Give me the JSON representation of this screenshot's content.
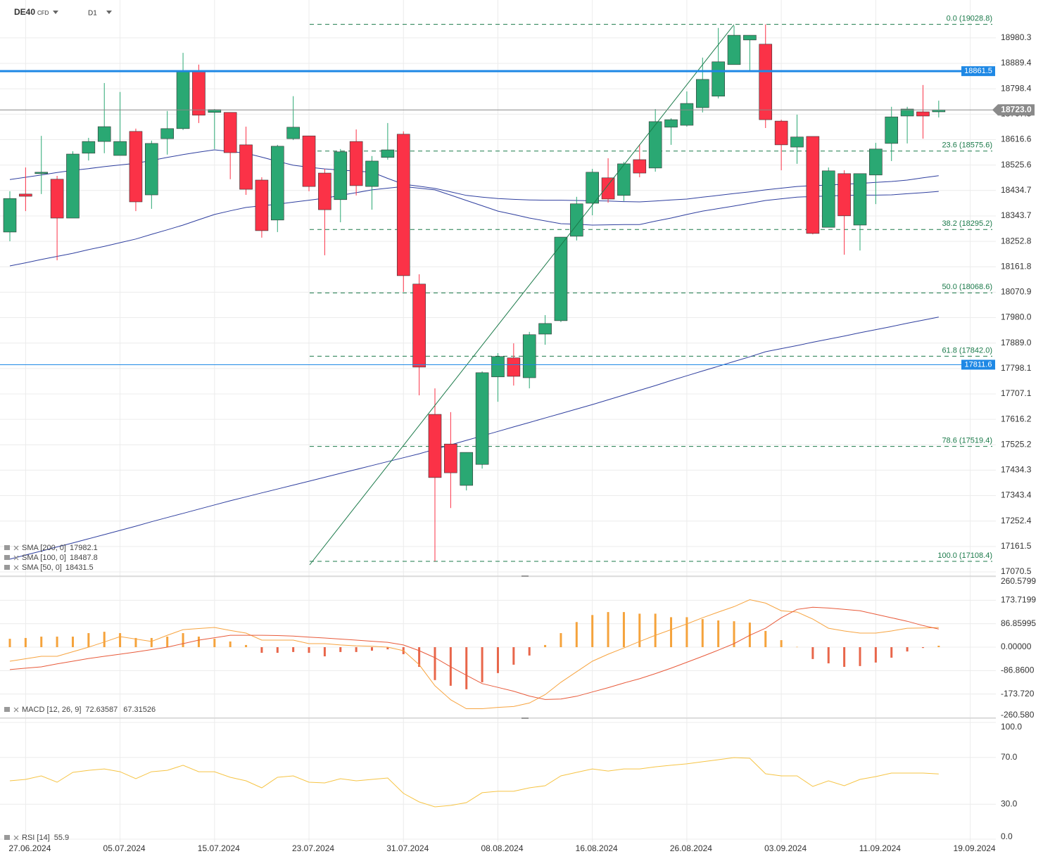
{
  "header": {
    "symbol": "DE40",
    "kind": "CFD",
    "interval": "D1"
  },
  "chart_data": [
    {
      "type": "candlestick",
      "categories": [
        null,
        "27.06.2024",
        null,
        null,
        null,
        null,
        null,
        "05.07.2024",
        null,
        null,
        null,
        null,
        null,
        "15.07.2024",
        null,
        null,
        null,
        null,
        null,
        "23.07.2024",
        null,
        null,
        null,
        null,
        null,
        "31.07.2024",
        null,
        null,
        null,
        null,
        null,
        "08.08.2024",
        null,
        null,
        null,
        null,
        null,
        "16.08.2024",
        null,
        null,
        null,
        null,
        null,
        "26.08.2024",
        null,
        null,
        null,
        null,
        null,
        "03.09.2024",
        null,
        null,
        null,
        null,
        null,
        "11.09.2024",
        null,
        null,
        null,
        null,
        null,
        "19.09.2024"
      ],
      "open": [
        18286,
        18422,
        18495,
        18475,
        18336,
        18568,
        18610,
        18560,
        18646,
        18419,
        18620,
        18656,
        18862,
        18714,
        18714,
        18598,
        18472,
        18329,
        18620,
        18630,
        18497,
        18402,
        18610,
        18449,
        18553,
        18636,
        18100,
        17634,
        17528,
        17380,
        17455,
        17768,
        17836,
        17765,
        17921,
        17969,
        18271,
        18389,
        18480,
        18417,
        18545,
        18515,
        18661,
        18668,
        18731,
        18772,
        18885,
        18973,
        18958,
        18683,
        18590,
        18628,
        18303,
        18495,
        18311,
        18490,
        18603,
        18701,
        18716,
        18716,
        null,
        null
      ],
      "high": [
        18432,
        18517,
        18630,
        18487,
        18575,
        18623,
        18819,
        18787,
        18656,
        18613,
        18719,
        18927,
        18885,
        18726,
        18714,
        18663,
        18482,
        18598,
        18772,
        18630,
        18512,
        18583,
        18653,
        18558,
        18676,
        18646,
        18135,
        17727,
        17642,
        17498,
        17788,
        17853,
        17888,
        17929,
        17989,
        18268,
        18412,
        18512,
        18550,
        18537,
        18600,
        18726,
        18693,
        18789,
        18910,
        19016,
        19023,
        18990,
        19028.8,
        18688,
        18706,
        18628,
        18517,
        18507,
        18495,
        18605,
        18734,
        18734,
        18812,
        18756,
        null,
        null
      ],
      "low": [
        18253,
        18361,
        18422,
        18185,
        18336,
        18542,
        18568,
        18560,
        18361,
        18369,
        18563,
        18651,
        18676,
        18583,
        18475,
        18419,
        18266,
        18286,
        18615,
        18432,
        18203,
        18321,
        18417,
        18366,
        18545,
        18072,
        17702,
        17108.4,
        17299,
        17362,
        17440,
        17679,
        17737,
        17727,
        17883,
        17964,
        18256,
        18346,
        18391,
        18397,
        18482,
        18502,
        18598,
        18663,
        18714,
        18764,
        18885,
        18860,
        18658,
        18507,
        18530,
        18278,
        18303,
        18205,
        18220,
        18386,
        18540,
        18603,
        18620,
        18696,
        null,
        null
      ],
      "close": [
        18406,
        18414,
        18500,
        18336,
        18565,
        18610,
        18663,
        18610,
        18394,
        18603,
        18656,
        18862,
        18704,
        18724,
        18570,
        18439,
        18291,
        18593,
        18661,
        18449,
        18366,
        18573,
        18452,
        18540,
        18580,
        18130,
        17803,
        17408,
        17425,
        17498,
        17783,
        17841,
        17770,
        17919,
        17959,
        18268,
        18387,
        18500,
        18404,
        18530,
        18497,
        18681,
        18688,
        18746,
        18832,
        18895,
        18990,
        18990,
        18688,
        18598,
        18626,
        18281,
        18505,
        18344,
        18495,
        18583,
        18698,
        18726,
        18701,
        18723,
        null,
        null
      ],
      "up_color": "#2aa873",
      "down_color": "#fb3247",
      "series": [
        {
          "name": "SMA [200, 0]",
          "color": "#2f3f9f",
          "values": [
            17116,
            17131,
            17145,
            17160,
            17174,
            17189,
            17204,
            17219,
            17234,
            17250,
            17265,
            17280,
            17295,
            17310,
            17325,
            17339,
            17353,
            17367,
            17381,
            17395,
            17409,
            17423,
            17437,
            17451,
            17465,
            17479,
            17493,
            17509,
            17525,
            17541,
            17557,
            17573,
            17589,
            17605,
            17621,
            17637,
            17653,
            17669,
            17686,
            17703,
            17720,
            17737,
            17755,
            17772,
            17789,
            17806,
            17823,
            17840,
            17858,
            17869,
            17880,
            17892,
            17903,
            17914,
            17926,
            17937,
            17948,
            17960,
            17971,
            17982.1,
            null,
            null
          ]
        },
        {
          "name": "SMA [100, 0]",
          "color": "#2f3f9f",
          "values": [
            18474,
            18482,
            18490,
            18499,
            18507,
            18513,
            18520,
            18526,
            18532,
            18542,
            18553,
            18563,
            18572,
            18580,
            18574,
            18568,
            18554,
            18539,
            18525,
            18518,
            18512,
            18508,
            18504,
            18500,
            18478,
            18457,
            18450,
            18442,
            18430,
            18417,
            18411,
            18406,
            18403,
            18401,
            18400,
            18400,
            18399,
            18398,
            18397,
            18395,
            18394,
            18397,
            18401,
            18404,
            18411,
            18417,
            18424,
            18430,
            18437,
            18443,
            18449,
            18452,
            18454,
            18457,
            18460,
            18464,
            18467,
            18472,
            18480,
            18487.8,
            null,
            null
          ]
        },
        {
          "name": "SMA [50, 0]",
          "color": "#2f3f9f",
          "values": [
            18165,
            18176,
            18188,
            18199,
            18210,
            18223,
            18235,
            18248,
            18261,
            18278,
            18294,
            18311,
            18330,
            18349,
            18362,
            18374,
            18380,
            18386,
            18393,
            18400,
            18407,
            18417,
            18427,
            18437,
            18443,
            18449,
            18443,
            18437,
            18418,
            18399,
            18380,
            18361,
            18349,
            18336,
            18326,
            18316,
            18314,
            18311,
            18312,
            18313,
            18313,
            18325,
            18336,
            18349,
            18361,
            18370,
            18379,
            18389,
            18399,
            18405,
            18411,
            18413,
            18415,
            18417,
            18418,
            18418,
            18419,
            18423,
            18427,
            18431.5,
            null,
            null
          ]
        }
      ],
      "hlines": [
        18861.5,
        17811.6
      ],
      "hline_color": "#1e88e5",
      "last_price": {
        "value": 18723,
        "label": "18723.0"
      },
      "fib_levels": [
        {
          "value": 19028.8,
          "label": "0.0 (19028.8)"
        },
        {
          "value": 18575.6,
          "label": "23.6 (18575.6)"
        },
        {
          "value": 18295.2,
          "label": "38.2 (18295.2)"
        },
        {
          "value": 18068.6,
          "label": "50.0 (18068.6)"
        },
        {
          "value": 17842.0,
          "label": "61.8 (17842.0)"
        },
        {
          "value": 17519.4,
          "label": "78.6 (17519.4)"
        },
        {
          "value": 17108.4,
          "label": "100.0 (17108.4)"
        }
      ],
      "ylim": [
        17058,
        19116
      ],
      "yticks": [
        18980.3,
        18889.4,
        18798.4,
        18707.5,
        18616.6,
        18525.6,
        18434.7,
        18343.7,
        18252.8,
        18161.8,
        18070.9,
        {
          "value": 17980,
          "label": "17980.0"
        },
        {
          "value": 17889,
          "label": "17889.0"
        },
        17798.1,
        17707.1,
        17616.2,
        17525.2,
        17434.3,
        17343.4,
        17252.4,
        17161.5,
        17070.5
      ],
      "grid": true
    },
    {
      "type": "macd",
      "title": "MACD [12, 26, 9]",
      "histogram": [
        31,
        34,
        39,
        39,
        39,
        52,
        57,
        52,
        34,
        34,
        39,
        52,
        39,
        31,
        21,
        8,
        -21,
        -21,
        -18,
        -21,
        -34,
        -18,
        -18,
        -13,
        -8,
        -26,
        -73,
        -122,
        -143,
        -156,
        -130,
        -96,
        -65,
        -31,
        8,
        52,
        93,
        119,
        130,
        130,
        124,
        124,
        111,
        111,
        104,
        99,
        96,
        91,
        60,
        26,
        1,
        -44,
        -60,
        -73,
        -70,
        -57,
        -39,
        -16,
        -3,
        5.3
      ],
      "up_color": "#f5a33c",
      "down_color": "#e8664a",
      "series": [
        {
          "color": "#f7a440",
          "values": [
            -52,
            -43,
            -34,
            -34,
            -17,
            0,
            19,
            39,
            30,
            21,
            44,
            65,
            69,
            73,
            62,
            52,
            26,
            26,
            26,
            13,
            13,
            8,
            5,
            3,
            0,
            -13,
            -65,
            -143,
            -195,
            -228,
            -228,
            -223,
            -220,
            -207,
            -176,
            -130,
            -91,
            -52,
            -26,
            -3,
            21,
            44,
            65,
            86,
            109,
            130,
            150,
            176,
            163,
            135,
            130,
            104,
            70,
            60,
            52,
            52,
            60,
            70,
            71,
            72.63587
          ]
        },
        {
          "color": "#e85a3a",
          "values": [
            -83,
            -78,
            -73,
            -62,
            -52,
            -42,
            -34,
            -26,
            -18,
            -9,
            0,
            13,
            26,
            35,
            44,
            44,
            44,
            43,
            41,
            37,
            34,
            30,
            26,
            22,
            18,
            8,
            -13,
            -39,
            -73,
            -104,
            -135,
            -149,
            -163,
            -181,
            -194,
            -192,
            -182,
            -166,
            -150,
            -133,
            -117,
            -98,
            -78,
            -56,
            -34,
            -11,
            13,
            44,
            70,
            109,
            140,
            148,
            145,
            140,
            135,
            122,
            109,
            96,
            80,
            67.31526
          ]
        }
      ],
      "ylim": [
        -260.58,
        260.58
      ],
      "yticks": [
        260.5799,
        173.7199,
        86.85995,
        {
          "value": 0,
          "label": "0.00000"
        },
        {
          "value": -86.86,
          "label": "-86.8600"
        },
        {
          "value": -173.72,
          "label": "-173.720"
        },
        {
          "value": -260.58,
          "label": "-260.580"
        }
      ],
      "grid": true
    },
    {
      "type": "line",
      "title": "RSI [14]",
      "series": [
        {
          "color": "#f6c445",
          "values": [
            50.0,
            51.2,
            54.2,
            48.8,
            57.2,
            59.0,
            60.2,
            57.8,
            51.8,
            57.8,
            59.0,
            63.3,
            57.8,
            57.8,
            53.0,
            50.0,
            44.0,
            53.0,
            54.2,
            48.8,
            48.2,
            51.8,
            50.0,
            51.2,
            52.4,
            39.2,
            31.9,
            27.7,
            28.9,
            31.3,
            39.8,
            41.0,
            41.0,
            44.0,
            45.8,
            54.2,
            57.2,
            60.2,
            58.4,
            60.2,
            60.2,
            62.0,
            63.3,
            64.5,
            66.3,
            68.1,
            69.9,
            69.3,
            56.0,
            54.2,
            54.2,
            45.2,
            50.0,
            45.8,
            51.2,
            53.6,
            56.6,
            56.6,
            56.6,
            55.9
          ]
        }
      ],
      "ylim": [
        0,
        100
      ],
      "yticks": [
        {
          "value": 100,
          "label": "100.0"
        },
        {
          "value": 70,
          "label": "70.0"
        },
        {
          "value": 30,
          "label": "30.0"
        },
        {
          "value": 0,
          "label": "0.0"
        }
      ],
      "grid": true
    }
  ]
}
